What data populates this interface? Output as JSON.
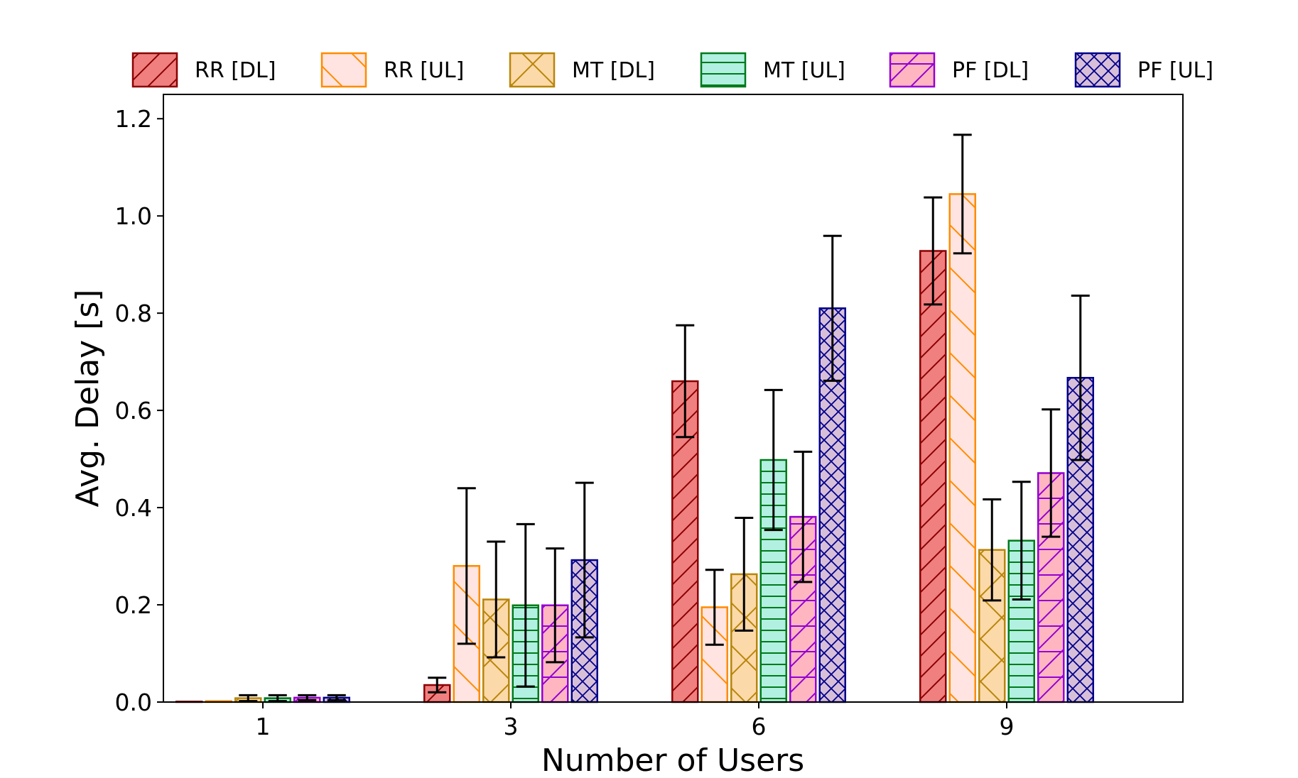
{
  "chart_data": {
    "type": "bar",
    "title": "",
    "xlabel": "Number of Users",
    "ylabel": "Avg. Delay [s]",
    "categories": [
      "1",
      "3",
      "6",
      "9"
    ],
    "ylim": [
      0,
      1.25
    ],
    "yticks": [
      "0.0",
      "0.2",
      "0.4",
      "0.6",
      "0.8",
      "1.0",
      "1.2"
    ],
    "grid": false,
    "legend_position": "top",
    "series": [
      {
        "name": "RR [DL]",
        "values": [
          0.001,
          0.035,
          0.66,
          0.928
        ],
        "err": [
          0.0,
          0.015,
          0.115,
          0.11
        ],
        "color": "#f08080",
        "edge": "#8b0000",
        "hatch": "diag"
      },
      {
        "name": "RR [UL]",
        "values": [
          0.002,
          0.28,
          0.195,
          1.045
        ],
        "err": [
          0.0,
          0.16,
          0.077,
          0.122
        ],
        "color": "#ffe4e1",
        "edge": "#ff8c00",
        "hatch": "backdiag"
      },
      {
        "name": "MT [DL]",
        "values": [
          0.008,
          0.211,
          0.263,
          0.313
        ],
        "err": [
          0.006,
          0.119,
          0.116,
          0.104
        ],
        "color": "#fcd9a8",
        "edge": "#b8860b",
        "hatch": "x"
      },
      {
        "name": "MT [UL]",
        "values": [
          0.008,
          0.199,
          0.498,
          0.332
        ],
        "err": [
          0.006,
          0.167,
          0.144,
          0.121
        ],
        "color": "#b2f0e1",
        "edge": "#007a1a",
        "hatch": "horiz"
      },
      {
        "name": "PF [DL]",
        "values": [
          0.009,
          0.199,
          0.381,
          0.471
        ],
        "err": [
          0.005,
          0.117,
          0.134,
          0.131
        ],
        "color": "#ffb6c1",
        "edge": "#9400d3",
        "hatch": "diaghoriz"
      },
      {
        "name": "PF [UL]",
        "values": [
          0.009,
          0.292,
          0.81,
          0.667
        ],
        "err": [
          0.005,
          0.159,
          0.149,
          0.169
        ],
        "color": "#d8bfd8",
        "edge": "#00008b",
        "hatch": "cross"
      }
    ]
  }
}
